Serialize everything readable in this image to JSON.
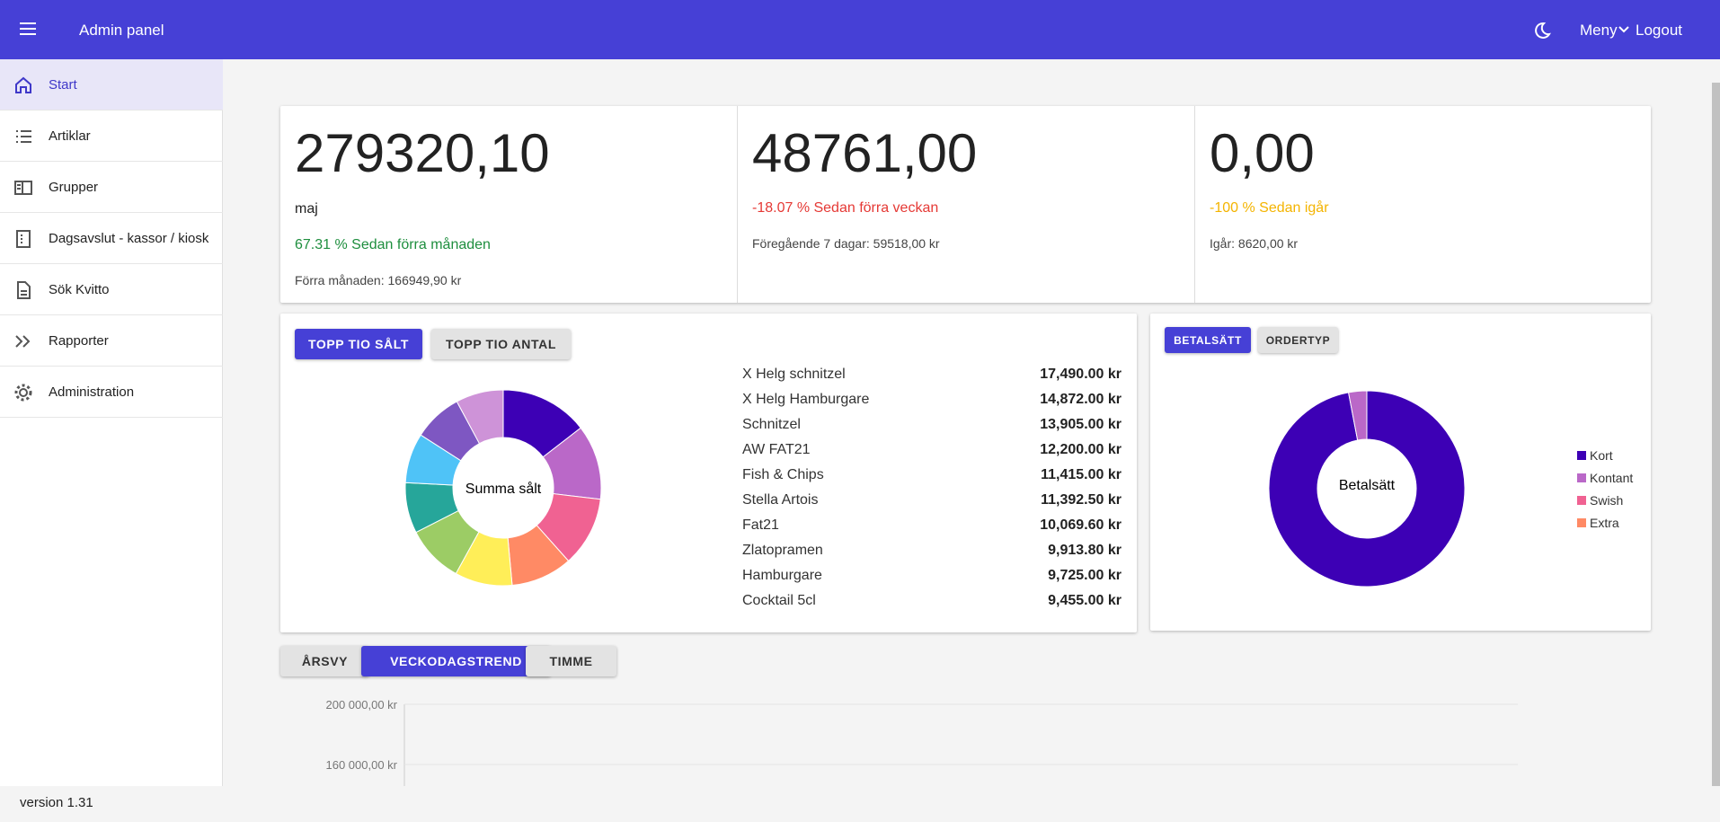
{
  "header": {
    "title": "Admin panel",
    "menu": "Meny",
    "logout": "Logout"
  },
  "sidebar": {
    "items": [
      "Start",
      "Artiklar",
      "Grupper",
      "Dagsavslut - kassor / kiosk",
      "Sök Kvitto",
      "Rapporter",
      "Administration"
    ],
    "version": "version 1.31"
  },
  "stats": [
    {
      "value": "279320,10",
      "period": "maj",
      "change": "67.31 % Sedan förra månaden",
      "previous": "Förra månaden: 166949,90 kr"
    },
    {
      "value": "48761,00",
      "change": "-18.07 % Sedan förra veckan",
      "previous": "Föregående 7 dagar: 59518,00 kr"
    },
    {
      "value": "0,00",
      "change": "-100 % Sedan igår",
      "previous": "Igår: 8620,00 kr"
    }
  ],
  "top_ten": {
    "tabs": [
      "TOPP TIO SÅLT",
      "TOPP TIO ANTAL"
    ],
    "center_label": "Summa sålt",
    "items": [
      {
        "name": "X Helg schnitzel",
        "value": 17490,
        "label": "17,490.00 kr",
        "color": "#3d00b5"
      },
      {
        "name": "X Helg Hamburgare",
        "value": 14872,
        "label": "14,872.00 kr",
        "color": "#ba68c8"
      },
      {
        "name": "Schnitzel",
        "value": 13905,
        "label": "13,905.00 kr",
        "color": "#f06292"
      },
      {
        "name": "AW FAT21",
        "value": 12200,
        "label": "12,200.00 kr",
        "color": "#ff8a65"
      },
      {
        "name": "Fish & Chips",
        "value": 11415,
        "label": "11,415.00 kr",
        "color": "#ffee58"
      },
      {
        "name": "Stella Artois",
        "value": 11392.5,
        "label": "11,392.50 kr",
        "color": "#9ccc65"
      },
      {
        "name": "Fat21",
        "value": 10069.6,
        "label": "10,069.60 kr",
        "color": "#26a69a"
      },
      {
        "name": "Zlatopramen",
        "value": 9913.8,
        "label": "9,913.80 kr",
        "color": "#4fc3f7"
      },
      {
        "name": "Hamburgare",
        "value": 9725,
        "label": "9,725.00 kr",
        "color": "#7e57c2"
      },
      {
        "name": "Cocktail 5cl",
        "value": 9455,
        "label": "9,455.00 kr",
        "color": "#ce93d8"
      }
    ]
  },
  "payment": {
    "tabs": [
      "BETALSÄTT",
      "ORDERTYP"
    ],
    "center_label": "Betalsätt",
    "series": [
      {
        "name": "Kort",
        "value": 97,
        "color": "#3d00b5"
      },
      {
        "name": "Kontant",
        "value": 3,
        "color": "#ba68c8"
      },
      {
        "name": "Swish",
        "value": 0,
        "color": "#f06292"
      },
      {
        "name": "Extra",
        "value": 0,
        "color": "#ff8a65"
      }
    ]
  },
  "trend": {
    "tabs": [
      "ÅRSVY",
      "VECKODAGSTREND",
      "TIMME"
    ],
    "yticks": [
      {
        "value": 200000,
        "label": "200 000,00 kr"
      },
      {
        "value": 160000,
        "label": "160 000,00 kr"
      }
    ]
  }
}
